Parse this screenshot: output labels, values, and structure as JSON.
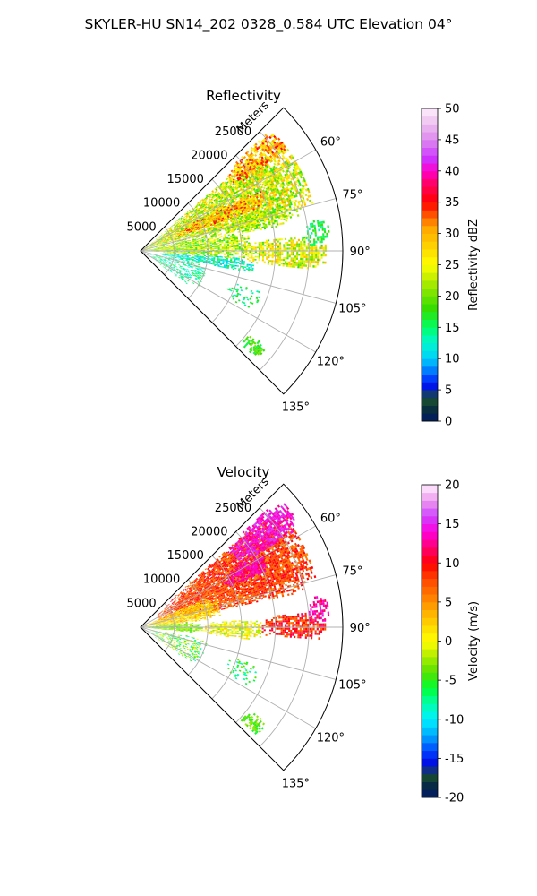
{
  "figure": {
    "suptitle": "SKYLER-HU  SN14_202  0328_0.584 UTC Elevation 04°"
  },
  "chart_data": [
    {
      "type": "heatmap",
      "subtype": "polar-sector-radar-ppi",
      "title": "Reflectivity",
      "radial_axis_label": "Meters",
      "radial_ticks": [
        "5000",
        "10000",
        "15000",
        "20000",
        "25000"
      ],
      "radial_tick_values": [
        5000,
        10000,
        15000,
        20000,
        25000
      ],
      "radial_range": [
        0,
        30000
      ],
      "angular_ticks": [
        "60°",
        "75°",
        "90°",
        "105°",
        "120°",
        "135°"
      ],
      "angular_tick_values": [
        60,
        75,
        90,
        105,
        120,
        135
      ],
      "theta_range_deg": [
        45,
        135
      ],
      "grid": true,
      "colorbar": {
        "label": "Reflectivity dBZ",
        "vmin": 0,
        "vmax": 50,
        "ticks": [
          "0",
          "5",
          "10",
          "15",
          "20",
          "25",
          "30",
          "35",
          "40",
          "45",
          "50"
        ],
        "tick_values": [
          0,
          5,
          10,
          15,
          20,
          25,
          30,
          35,
          40,
          45,
          50
        ],
        "colormap": [
          [
            0,
            "#001a66"
          ],
          [
            2,
            "#0a2f3a"
          ],
          [
            4,
            "#1f5c2e"
          ],
          [
            5,
            "#0000dd"
          ],
          [
            7,
            "#0044ff"
          ],
          [
            9,
            "#00aaff"
          ],
          [
            11,
            "#00e5ee"
          ],
          [
            13,
            "#00f7c0"
          ],
          [
            15,
            "#00ff66"
          ],
          [
            18,
            "#33dd00"
          ],
          [
            21,
            "#88e600"
          ],
          [
            23,
            "#c8f000"
          ],
          [
            25,
            "#ffff00"
          ],
          [
            28,
            "#ffd200"
          ],
          [
            31,
            "#ffa500"
          ],
          [
            33,
            "#ff5500"
          ],
          [
            35,
            "#ff0000"
          ],
          [
            38,
            "#ff0066"
          ],
          [
            40,
            "#ff00cc"
          ],
          [
            42,
            "#cc33ff"
          ],
          [
            45,
            "#dd88ee"
          ],
          [
            48,
            "#f0c8f0"
          ],
          [
            50,
            "#fff0ff"
          ]
        ]
      },
      "echo_regions": [
        {
          "theta": [
            50,
            78
          ],
          "r": [
            0,
            26500
          ],
          "value": 24,
          "spread": 7,
          "density": 0.85
        },
        {
          "theta": [
            62,
            70
          ],
          "r": [
            6000,
            20000
          ],
          "value": 30,
          "spread": 6,
          "density": 0.8
        },
        {
          "theta": [
            47,
            56
          ],
          "r": [
            17000,
            26500
          ],
          "value": 30,
          "spread": 6,
          "density": 0.8
        },
        {
          "theta": [
            72,
            80
          ],
          "r": [
            13000,
            22000
          ],
          "value": 22,
          "spread": 5,
          "density": 0.7
        },
        {
          "theta": [
            85,
            96
          ],
          "r": [
            15000,
            27500
          ],
          "value": 24,
          "spread": 6,
          "density": 0.75
        },
        {
          "theta": [
            78,
            94
          ],
          "r": [
            0,
            16000
          ],
          "value": 22,
          "spread": 6,
          "density": 0.85
        },
        {
          "theta": [
            94,
            101
          ],
          "r": [
            3000,
            17000
          ],
          "value": 13,
          "spread": 4,
          "density": 0.7
        },
        {
          "theta": [
            80,
            88
          ],
          "r": [
            24000,
            28000
          ],
          "value": 16,
          "spread": 3,
          "density": 0.55
        },
        {
          "theta": [
            100,
            125
          ],
          "r": [
            1500,
            10000
          ],
          "value": 14,
          "spread": 3,
          "density": 0.35
        },
        {
          "theta": [
            108,
            118
          ],
          "r": [
            14000,
            19000
          ],
          "value": 15,
          "spread": 3,
          "density": 0.25
        },
        {
          "theta": [
            127,
            133
          ],
          "r": [
            20000,
            23500
          ],
          "value": 18,
          "spread": 3,
          "density": 0.6
        }
      ]
    },
    {
      "type": "heatmap",
      "subtype": "polar-sector-radar-ppi",
      "title": "Velocity",
      "radial_axis_label": "Meters",
      "radial_ticks": [
        "5000",
        "10000",
        "15000",
        "20000",
        "25000"
      ],
      "radial_tick_values": [
        5000,
        10000,
        15000,
        20000,
        25000
      ],
      "radial_range": [
        0,
        30000
      ],
      "angular_ticks": [
        "60°",
        "75°",
        "90°",
        "105°",
        "120°",
        "135°"
      ],
      "angular_tick_values": [
        60,
        75,
        90,
        105,
        120,
        135
      ],
      "theta_range_deg": [
        45,
        135
      ],
      "grid": true,
      "colorbar": {
        "label": "Velocity (m/s)",
        "vmin": -20,
        "vmax": 20,
        "ticks": [
          "-20",
          "-15",
          "-10",
          "-5",
          "0",
          "5",
          "10",
          "15",
          "20"
        ],
        "tick_values": [
          -20,
          -15,
          -10,
          -5,
          0,
          5,
          10,
          15,
          20
        ],
        "colormap": [
          [
            -20,
            "#001a66"
          ],
          [
            -18,
            "#0a2f3a"
          ],
          [
            -17,
            "#1f5c2e"
          ],
          [
            -16,
            "#0000dd"
          ],
          [
            -14,
            "#0044ff"
          ],
          [
            -12,
            "#00aaff"
          ],
          [
            -10,
            "#00f0ff"
          ],
          [
            -8,
            "#00ffaa"
          ],
          [
            -6,
            "#00ff33"
          ],
          [
            -4,
            "#55e000"
          ],
          [
            -2,
            "#aaee00"
          ],
          [
            -1,
            "#d8f200"
          ],
          [
            0,
            "#ffff00"
          ],
          [
            2,
            "#ffd700"
          ],
          [
            4,
            "#ffa800"
          ],
          [
            6,
            "#ff7700"
          ],
          [
            8,
            "#ff4400"
          ],
          [
            10,
            "#ff0000"
          ],
          [
            12,
            "#ff0077"
          ],
          [
            14,
            "#ff00dd"
          ],
          [
            16,
            "#cc44ff"
          ],
          [
            18,
            "#ee99ee"
          ],
          [
            20,
            "#fff0ff"
          ]
        ]
      },
      "echo_regions": [
        {
          "theta": [
            48,
            78
          ],
          "r": [
            3000,
            27000
          ],
          "value": 8,
          "spread": 3,
          "density": 0.9
        },
        {
          "theta": [
            47,
            58
          ],
          "r": [
            17000,
            28000
          ],
          "value": 14,
          "spread": 2,
          "density": 0.85
        },
        {
          "theta": [
            58,
            66
          ],
          "r": [
            14000,
            21000
          ],
          "value": 13,
          "spread": 2,
          "density": 0.8
        },
        {
          "theta": [
            66,
            84
          ],
          "r": [
            0,
            12000
          ],
          "value": 2,
          "spread": 3,
          "density": 0.9
        },
        {
          "theta": [
            84,
            96
          ],
          "r": [
            0,
            9000
          ],
          "value": -3,
          "spread": 2,
          "density": 0.85
        },
        {
          "theta": [
            86,
            96
          ],
          "r": [
            9000,
            18000
          ],
          "value": 0,
          "spread": 3,
          "density": 0.75
        },
        {
          "theta": [
            85,
            94
          ],
          "r": [
            18000,
            27500
          ],
          "value": 9,
          "spread": 3,
          "density": 0.7
        },
        {
          "theta": [
            80,
            88
          ],
          "r": [
            25000,
            28000
          ],
          "value": 13,
          "spread": 2,
          "density": 0.5
        },
        {
          "theta": [
            100,
            125
          ],
          "r": [
            1500,
            10000
          ],
          "value": -4,
          "spread": 5,
          "density": 0.35
        },
        {
          "theta": [
            108,
            118
          ],
          "r": [
            14000,
            19000
          ],
          "value": -6,
          "spread": 3,
          "density": 0.25
        },
        {
          "theta": [
            127,
            133
          ],
          "r": [
            20000,
            23500
          ],
          "value": -4,
          "spread": 2,
          "density": 0.6
        }
      ]
    }
  ]
}
